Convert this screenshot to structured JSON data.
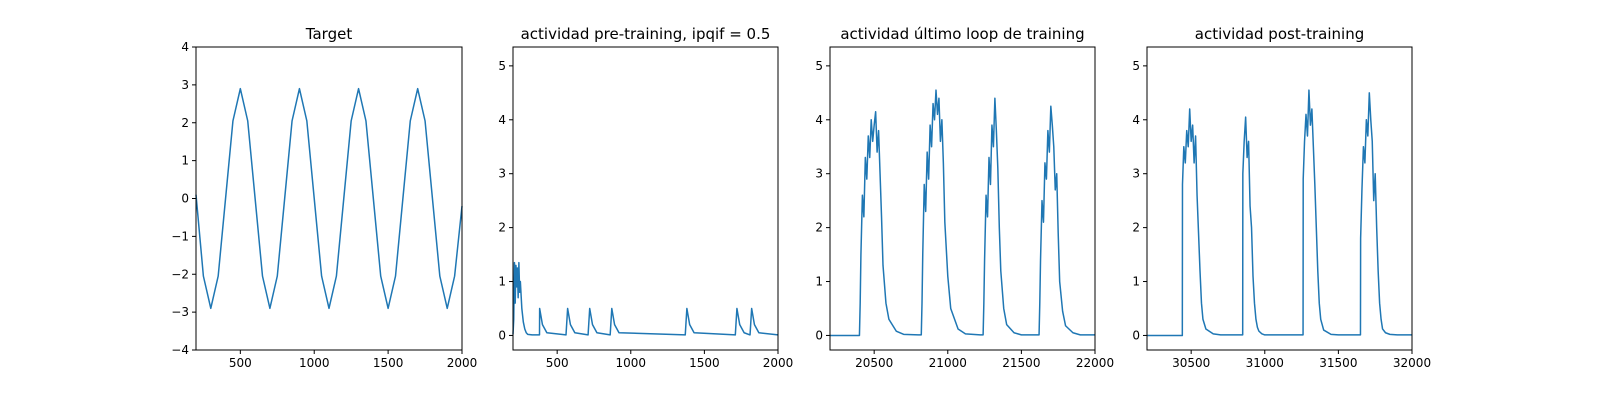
{
  "chart_data": [
    {
      "type": "line",
      "title": "Target",
      "xlim": [
        200,
        2000
      ],
      "ylim": [
        -4,
        4
      ],
      "xticks": [
        500,
        1000,
        1500,
        2000
      ],
      "yticks": [
        -4,
        -3,
        -2,
        -1,
        0,
        1,
        2,
        3,
        4
      ],
      "ytick_labels": [
        "−4",
        "−3",
        "−2",
        "−1",
        "0",
        "1",
        "2",
        "3",
        "4"
      ],
      "grid": false,
      "series": [
        {
          "color": "#1f77b4",
          "x": [
            200,
            250,
            300,
            350,
            400,
            450,
            500,
            550,
            600,
            650,
            700,
            750,
            800,
            850,
            900,
            950,
            1000,
            1050,
            1100,
            1150,
            1200,
            1250,
            1300,
            1350,
            1400,
            1450,
            1500,
            1550,
            1600,
            1650,
            1700,
            1750,
            1800,
            1850,
            1900,
            1950,
            2000
          ],
          "y": [
            0.1,
            -2.05,
            -2.9,
            -2.05,
            0,
            2.05,
            2.9,
            2.05,
            0,
            -2.05,
            -2.9,
            -2.05,
            0,
            2.05,
            2.9,
            2.05,
            0,
            -2.05,
            -2.9,
            -2.05,
            0,
            2.05,
            2.9,
            2.05,
            0,
            -2.05,
            -2.9,
            -2.05,
            0,
            2.05,
            2.9,
            2.05,
            0,
            -2.05,
            -2.9,
            -2.05,
            -0.2
          ]
        }
      ]
    },
    {
      "type": "line",
      "title": "actividad pre-training, ipqif = 0.5",
      "xlim": [
        200,
        2000
      ],
      "ylim": [
        -0.27,
        5.35
      ],
      "xticks": [
        500,
        1000,
        1500,
        2000
      ],
      "yticks": [
        0,
        1,
        2,
        3,
        4,
        5
      ],
      "ytick_labels": [
        "0",
        "1",
        "2",
        "3",
        "4",
        "5"
      ],
      "grid": false,
      "series": [
        {
          "color": "#1f77b4",
          "x": [
            200,
            205,
            210,
            215,
            220,
            225,
            230,
            235,
            240,
            245,
            250,
            260,
            270,
            280,
            290,
            300,
            330,
            370,
            380,
            381,
            400,
            430,
            560,
            571,
            590,
            620,
            710,
            721,
            740,
            770,
            860,
            871,
            890,
            920,
            1370,
            1381,
            1400,
            1430,
            1710,
            1721,
            1740,
            1770,
            1810,
            1821,
            1840,
            1870,
            2000
          ],
          "y": [
            0.02,
            0.3,
            1.35,
            0.6,
            1.3,
            0.9,
            1.25,
            0.7,
            1.35,
            0.8,
            1.0,
            0.5,
            0.25,
            0.12,
            0.05,
            0.02,
            0.01,
            0.01,
            0.01,
            0.5,
            0.2,
            0.05,
            0.01,
            0.5,
            0.2,
            0.05,
            0.01,
            0.5,
            0.2,
            0.05,
            0.01,
            0.5,
            0.2,
            0.05,
            0.01,
            0.5,
            0.2,
            0.05,
            0.01,
            0.5,
            0.2,
            0.05,
            0.01,
            0.5,
            0.2,
            0.05,
            0.01
          ]
        }
      ]
    },
    {
      "type": "line",
      "title": "actividad último loop de training",
      "xlim": [
        20200,
        22000
      ],
      "ylim": [
        -0.27,
        5.35
      ],
      "xticks": [
        20500,
        21000,
        21500,
        22000
      ],
      "yticks": [
        0,
        1,
        2,
        3,
        4,
        5
      ],
      "ytick_labels": [
        "0",
        "1",
        "2",
        "3",
        "4",
        "5"
      ],
      "grid": false,
      "series": [
        {
          "color": "#1f77b4",
          "x": [
            20200,
            20400,
            20405,
            20410,
            20420,
            20430,
            20440,
            20450,
            20460,
            20470,
            20480,
            20490,
            20500,
            20510,
            20520,
            20530,
            20540,
            20550,
            20560,
            20580,
            20600,
            20650,
            20700,
            20800,
            20820,
            20825,
            20830,
            20840,
            20850,
            20860,
            20870,
            20880,
            20890,
            20900,
            20910,
            20920,
            20930,
            20940,
            20950,
            20960,
            20970,
            20980,
            21000,
            21020,
            21070,
            21120,
            21220,
            21240,
            21245,
            21250,
            21260,
            21270,
            21280,
            21290,
            21300,
            21310,
            21320,
            21330,
            21340,
            21350,
            21360,
            21380,
            21400,
            21450,
            21500,
            21600,
            21620,
            21625,
            21630,
            21640,
            21650,
            21660,
            21670,
            21680,
            21690,
            21700,
            21710,
            21720,
            21730,
            21740,
            21750,
            21760,
            21780,
            21800,
            21850,
            21900,
            22000
          ],
          "y": [
            0,
            0,
            0.6,
            1.5,
            2.6,
            2.2,
            3.3,
            2.9,
            3.7,
            3.3,
            4.0,
            3.6,
            3.9,
            4.15,
            3.4,
            3.8,
            3.0,
            2.2,
            1.3,
            0.6,
            0.3,
            0.08,
            0.02,
            0.01,
            0.01,
            0.6,
            1.5,
            2.8,
            2.3,
            3.4,
            2.9,
            3.9,
            3.5,
            4.3,
            4.0,
            4.55,
            4.1,
            4.4,
            3.6,
            4.0,
            3.2,
            2.1,
            1.1,
            0.5,
            0.12,
            0.03,
            0.01,
            0.01,
            0.6,
            1.4,
            2.6,
            2.2,
            3.3,
            2.8,
            3.9,
            3.5,
            4.4,
            3.8,
            3.1,
            2.0,
            1.2,
            0.5,
            0.2,
            0.05,
            0.01,
            0.01,
            0.01,
            0.6,
            1.4,
            2.5,
            2.1,
            3.2,
            2.9,
            3.8,
            3.4,
            4.25,
            3.9,
            3.5,
            2.7,
            3.0,
            1.9,
            1.0,
            0.45,
            0.18,
            0.05,
            0.01,
            0.01
          ]
        }
      ]
    },
    {
      "type": "line",
      "title": "actividad post-training",
      "xlim": [
        30200,
        32000
      ],
      "ylim": [
        -0.27,
        5.35
      ],
      "xticks": [
        30500,
        31000,
        31500,
        32000
      ],
      "yticks": [
        0,
        1,
        2,
        3,
        4,
        5
      ],
      "ytick_labels": [
        "0",
        "1",
        "2",
        "3",
        "4",
        "5"
      ],
      "grid": false,
      "series": [
        {
          "color": "#1f77b4",
          "x": [
            30200,
            30440,
            30441,
            30450,
            30460,
            30470,
            30480,
            30490,
            30500,
            30510,
            30520,
            30530,
            30540,
            30550,
            30560,
            30570,
            30580,
            30600,
            30650,
            30700,
            30850,
            30851,
            30860,
            30870,
            30880,
            30890,
            30900,
            30910,
            30920,
            30930,
            30940,
            30950,
            30960,
            30980,
            31000,
            31050,
            31100,
            31260,
            31261,
            31270,
            31280,
            31290,
            31300,
            31310,
            31320,
            31330,
            31340,
            31350,
            31360,
            31370,
            31380,
            31400,
            31450,
            31500,
            31650,
            31651,
            31660,
            31670,
            31680,
            31690,
            31700,
            31710,
            31720,
            31730,
            31740,
            31750,
            31760,
            31770,
            31780,
            31790,
            31800,
            31820,
            31850,
            31900,
            32000
          ],
          "y": [
            0,
            0,
            2.8,
            3.5,
            3.2,
            3.8,
            3.5,
            4.2,
            3.6,
            3.9,
            3.2,
            3.7,
            2.6,
            1.9,
            1.2,
            0.6,
            0.3,
            0.12,
            0.03,
            0.01,
            0.01,
            3.0,
            3.6,
            4.05,
            3.3,
            3.6,
            2.4,
            2.0,
            1.1,
            0.6,
            0.3,
            0.15,
            0.08,
            0.03,
            0.01,
            0.01,
            0.01,
            0.01,
            2.9,
            3.6,
            4.1,
            3.7,
            4.55,
            3.9,
            4.2,
            3.5,
            2.8,
            2.0,
            1.2,
            0.6,
            0.3,
            0.1,
            0.02,
            0.01,
            0.01,
            1.8,
            2.7,
            3.5,
            3.2,
            4.0,
            3.7,
            4.5,
            4.0,
            3.6,
            2.5,
            3.0,
            2.0,
            1.2,
            0.6,
            0.3,
            0.12,
            0.05,
            0.02,
            0.01,
            0.01
          ]
        }
      ]
    }
  ]
}
